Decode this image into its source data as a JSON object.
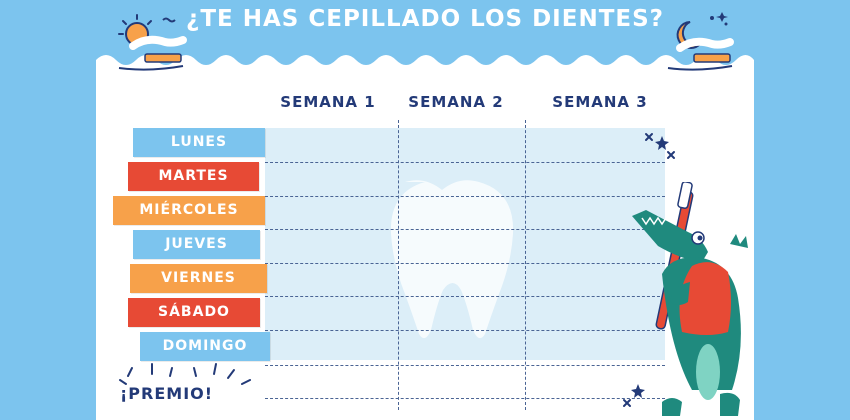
{
  "header": {
    "title": "¿TE HAS CEPILLADO LOS DIENTES?"
  },
  "weeks": [
    "SEMANA 1",
    "SEMANA 2",
    "SEMANA 3"
  ],
  "days": [
    {
      "label": "LUNES",
      "color": "#7cc4ee"
    },
    {
      "label": "MARTES",
      "color": "#e74a35"
    },
    {
      "label": "MIÉRCOLES",
      "color": "#f7a14a"
    },
    {
      "label": "JUEVES",
      "color": "#7cc4ee"
    },
    {
      "label": "VIERNES",
      "color": "#f7a14a"
    },
    {
      "label": "SÁBADO",
      "color": "#e74a35"
    },
    {
      "label": "DOMINGO",
      "color": "#7cc4ee"
    }
  ],
  "prize": {
    "label": "¡PREMIO!"
  },
  "icons": {
    "top_left": "sun-toothbrush-icon",
    "top_right": "moon-toothbrush-icon",
    "background": "tooth-icon",
    "mascot": "crocodile-toothbrush-icon"
  },
  "colors": {
    "sky": "#7cc4ee",
    "navy": "#233a78",
    "red": "#e74a35",
    "orange": "#f7a14a",
    "grid": "#dceef8",
    "croc": "#1f8a7e"
  }
}
